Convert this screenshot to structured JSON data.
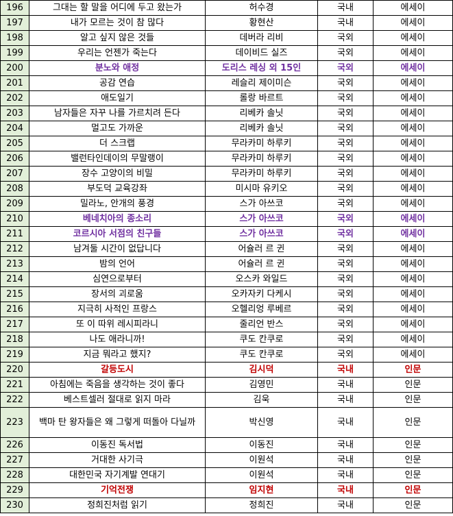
{
  "rows": [
    {
      "no": "196",
      "title": "그대는 할 말을 어디에 두고 왔는가",
      "author": "허수경",
      "origin": "국내",
      "genre": "에세이",
      "highlight": ""
    },
    {
      "no": "197",
      "title": "내가 모르는 것이 참 많다",
      "author": "황현산",
      "origin": "국내",
      "genre": "에세이",
      "highlight": ""
    },
    {
      "no": "198",
      "title": "알고 싶지 않은 것들",
      "author": "데버라 리비",
      "origin": "국외",
      "genre": "에세이",
      "highlight": ""
    },
    {
      "no": "199",
      "title": "우리는 언젠가 죽는다",
      "author": "데이비드 실즈",
      "origin": "국외",
      "genre": "에세이",
      "highlight": ""
    },
    {
      "no": "200",
      "title": "분노와 애정",
      "author": "도리스 레싱 외 15인",
      "origin": "국외",
      "genre": "에세이",
      "highlight": "purple"
    },
    {
      "no": "201",
      "title": "공감 연습",
      "author": "레슬리 제이미슨",
      "origin": "국외",
      "genre": "에세이",
      "highlight": ""
    },
    {
      "no": "202",
      "title": "애도일기",
      "author": "롤랑 바르트",
      "origin": "국외",
      "genre": "에세이",
      "highlight": ""
    },
    {
      "no": "203",
      "title": "남자들은 자꾸 나를 가르치려 든다",
      "author": "리베카 솔닛",
      "origin": "국외",
      "genre": "에세이",
      "highlight": ""
    },
    {
      "no": "204",
      "title": "멀고도 가까운",
      "author": "리베카 솔닛",
      "origin": "국외",
      "genre": "에세이",
      "highlight": ""
    },
    {
      "no": "205",
      "title": "더 스크랩",
      "author": "무라카미 하루키",
      "origin": "국외",
      "genre": "에세이",
      "highlight": ""
    },
    {
      "no": "206",
      "title": "밸런타인데이의 무말랭이",
      "author": "무라카미 하루키",
      "origin": "국외",
      "genre": "에세이",
      "highlight": ""
    },
    {
      "no": "207",
      "title": "장수 고양이의 비밀",
      "author": "무라카미 하루키",
      "origin": "국외",
      "genre": "에세이",
      "highlight": ""
    },
    {
      "no": "208",
      "title": "부도덕 교육강좌",
      "author": "미시마 유키오",
      "origin": "국외",
      "genre": "에세이",
      "highlight": ""
    },
    {
      "no": "209",
      "title": "밀라노, 안개의 풍경",
      "author": "스가 아쓰코",
      "origin": "국외",
      "genre": "에세이",
      "highlight": ""
    },
    {
      "no": "210",
      "title": "베네치아의 종소리",
      "author": "스가 아쓰코",
      "origin": "국외",
      "genre": "에세이",
      "highlight": "purple"
    },
    {
      "no": "211",
      "title": "코르시아 서점의 친구들",
      "author": "스가 아쓰코",
      "origin": "국외",
      "genre": "에세이",
      "highlight": "purple"
    },
    {
      "no": "212",
      "title": "남겨둘 시간이 없답니다",
      "author": "어슐러 르 귄",
      "origin": "국외",
      "genre": "에세이",
      "highlight": ""
    },
    {
      "no": "213",
      "title": "밤의 언어",
      "author": "어슐러 르 귄",
      "origin": "국외",
      "genre": "에세이",
      "highlight": ""
    },
    {
      "no": "214",
      "title": "심연으로부터",
      "author": "오스카 와일드",
      "origin": "국외",
      "genre": "에세이",
      "highlight": ""
    },
    {
      "no": "215",
      "title": "장서의 괴로움",
      "author": "오카자키 다케시",
      "origin": "국외",
      "genre": "에세이",
      "highlight": ""
    },
    {
      "no": "216",
      "title": "지극히 사적인 프랑스",
      "author": "오헬리엉 루베르",
      "origin": "국외",
      "genre": "에세이",
      "highlight": ""
    },
    {
      "no": "217",
      "title": "또 이 따위 레시피라니",
      "author": "줄리언 반스",
      "origin": "국외",
      "genre": "에세이",
      "highlight": ""
    },
    {
      "no": "218",
      "title": "나도 애라니까!",
      "author": "쿠도 칸쿠로",
      "origin": "국외",
      "genre": "에세이",
      "highlight": ""
    },
    {
      "no": "219",
      "title": "지금 뭐라고 했지?",
      "author": "쿠도 칸쿠로",
      "origin": "국외",
      "genre": "에세이",
      "highlight": ""
    },
    {
      "no": "220",
      "title": "갈등도시",
      "author": "김시덕",
      "origin": "국내",
      "genre": "인문",
      "highlight": "red"
    },
    {
      "no": "221",
      "title": "아침에는 죽음을 생각하는 것이 좋다",
      "author": "김영민",
      "origin": "국내",
      "genre": "인문",
      "highlight": ""
    },
    {
      "no": "222",
      "title": "베스트셀러 절대로 읽지 마라",
      "author": "김욱",
      "origin": "국내",
      "genre": "인문",
      "highlight": ""
    },
    {
      "no": "223",
      "title": "백마 탄 왕자들은 왜 그렇게 떠돌아 다닐까",
      "author": "박신영",
      "origin": "국내",
      "genre": "인문",
      "highlight": "",
      "tall": true
    },
    {
      "no": "226",
      "title": "이동진 독서법",
      "author": "이동진",
      "origin": "국내",
      "genre": "인문",
      "highlight": ""
    },
    {
      "no": "227",
      "title": "거대한 사기극",
      "author": "이원석",
      "origin": "국내",
      "genre": "인문",
      "highlight": ""
    },
    {
      "no": "228",
      "title": "대한민국 자기계발 연대기",
      "author": "이원석",
      "origin": "국내",
      "genre": "인문",
      "highlight": ""
    },
    {
      "no": "229",
      "title": "기억전쟁",
      "author": "임지현",
      "origin": "국내",
      "genre": "인문",
      "highlight": "red"
    },
    {
      "no": "230",
      "title": "정희진처럼 읽기",
      "author": "정희진",
      "origin": "국내",
      "genre": "인문",
      "highlight": ""
    }
  ],
  "colors": {
    "row_number_bg": "#e2efd9",
    "highlight_purple": "#7030a0",
    "highlight_red": "#c00000",
    "border": "#000000"
  }
}
